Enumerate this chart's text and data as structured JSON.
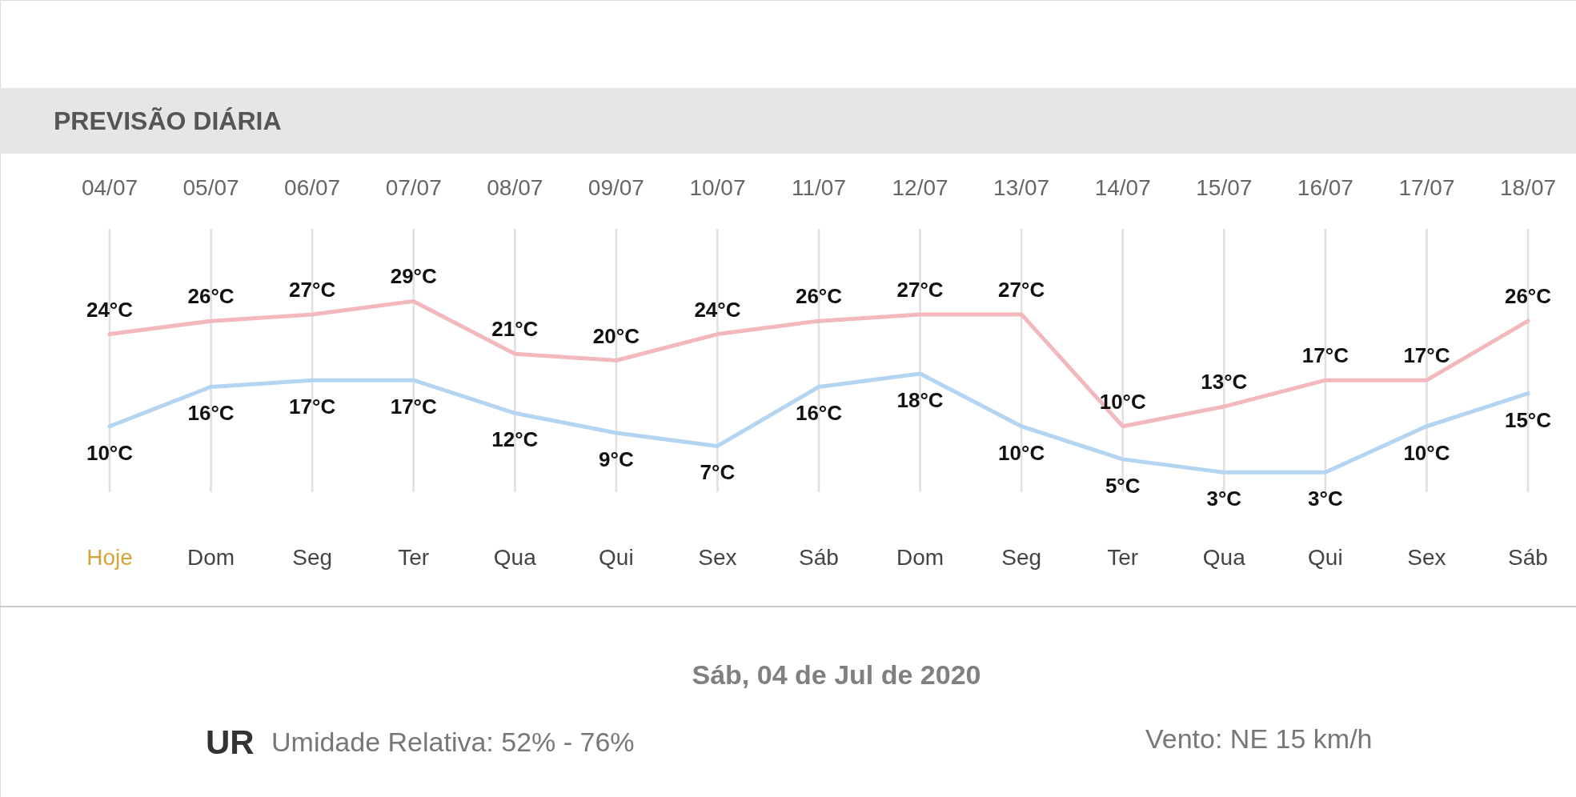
{
  "chart_data": {
    "type": "line",
    "title": "PREVISÃO DIÁRIA",
    "categories": [
      "04/07",
      "05/07",
      "06/07",
      "07/07",
      "08/07",
      "09/07",
      "10/07",
      "11/07",
      "12/07",
      "13/07",
      "14/07",
      "15/07",
      "16/07",
      "17/07",
      "18/07"
    ],
    "series": [
      {
        "color": "#f2b8bb",
        "values": [
          24,
          26,
          27,
          29,
          21,
          20,
          24,
          26,
          27,
          27,
          10,
          13,
          17,
          17,
          26
        ],
        "value_labels": [
          "24°C",
          "26°C",
          "27°C",
          "29°C",
          "21°C",
          "20°C",
          "24°C",
          "26°C",
          "27°C",
          "27°C",
          "10°C",
          "13°C",
          "17°C",
          "17°C",
          "26°C"
        ]
      },
      {
        "color": "#b3d5f1",
        "values": [
          10,
          16,
          17,
          17,
          12,
          9,
          7,
          16,
          18,
          10,
          5,
          3,
          3,
          10,
          15
        ],
        "value_labels": [
          "10°C",
          "16°C",
          "17°C",
          "17°C",
          "12°C",
          "9°C",
          "7°C",
          "16°C",
          "18°C",
          "10°C",
          "5°C",
          "3°C",
          "3°C",
          "10°C",
          "15°C"
        ]
      }
    ],
    "ylim": [
      0,
      40
    ],
    "grid": "x",
    "annotations": [
      "Hoje",
      "Dom",
      "Seg",
      "Ter",
      "Qua",
      "Qui",
      "Sex",
      "Sáb",
      "Dom",
      "Seg",
      "Ter",
      "Qua",
      "Qui",
      "Sex",
      "Sáb",
      "Sáb, 04 de Jul de 2020",
      "UR",
      "Umidade Relativa: 52% - 76%",
      "Vento: NE 15 km/h"
    ]
  }
}
